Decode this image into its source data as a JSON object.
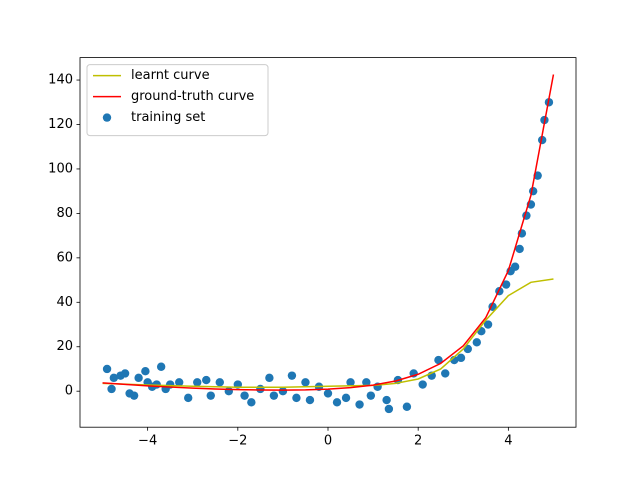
{
  "chart_data": {
    "type": "scatter",
    "xlim": [
      -5.5,
      5.5
    ],
    "ylim": [
      -16.2,
      150.1
    ],
    "xticks": [
      {
        "value": -4,
        "label": "−4"
      },
      {
        "value": -2,
        "label": "−2"
      },
      0,
      2,
      4
    ],
    "yticks": [
      0,
      20,
      40,
      60,
      80,
      100,
      120,
      140
    ],
    "legend": "upper left",
    "series": [
      {
        "name": "learnt curve",
        "type": "line",
        "color": "#bfbf00",
        "x": [
          -5,
          -4,
          -3,
          -2,
          -1,
          0,
          1,
          1.5,
          2,
          2.5,
          3,
          3.5,
          4,
          4.5,
          5
        ],
        "values": [
          3.5,
          2.8,
          2.2,
          1.8,
          1.8,
          2.2,
          2.6,
          3.5,
          5.5,
          10,
          19,
          32,
          43,
          49,
          50.5
        ]
      },
      {
        "name": "ground-truth curve",
        "type": "line",
        "color": "#ff0000",
        "x": [
          -5,
          -4.5,
          -4,
          -3.5,
          -3,
          -2.5,
          -2,
          -1.5,
          -1,
          -0.5,
          0,
          0.5,
          1,
          1.5,
          2,
          2.5,
          3,
          3.5,
          4,
          4.5,
          5
        ],
        "values": [
          3.76,
          3.05,
          2.42,
          1.86,
          1.4,
          0.97,
          0.73,
          0.55,
          0.5,
          0.61,
          0.95,
          1.6,
          2.73,
          4.6,
          7.62,
          12.51,
          20.43,
          33.11,
          54.27,
          88.1,
          142.5
        ]
      },
      {
        "name": "training set",
        "type": "scatter",
        "color": "#1f77b4",
        "x": [
          -4.9,
          -4.8,
          -4.75,
          -4.6,
          -4.5,
          -4.4,
          -4.3,
          -4.2,
          -4.05,
          -4.0,
          -3.9,
          -3.8,
          -3.7,
          -3.6,
          -3.5,
          -3.3,
          -3.1,
          -2.9,
          -2.7,
          -2.6,
          -2.4,
          -2.2,
          -2.0,
          -1.85,
          -1.7,
          -1.5,
          -1.3,
          -1.2,
          -1.0,
          -0.8,
          -0.7,
          -0.5,
          -0.4,
          -0.2,
          0.0,
          0.2,
          0.4,
          0.5,
          0.7,
          0.85,
          0.95,
          1.1,
          1.3,
          1.35,
          1.55,
          1.75,
          1.9,
          2.1,
          2.3,
          2.45,
          2.6,
          2.8,
          2.95,
          3.1,
          3.3,
          3.4,
          3.55,
          3.65,
          3.8,
          3.95,
          4.05,
          4.15,
          4.25,
          4.3,
          4.4,
          4.5,
          4.55,
          4.65,
          4.75,
          4.8,
          4.9
        ],
        "values": [
          10,
          1,
          6,
          7,
          8,
          -1,
          -2,
          6,
          9,
          4,
          2,
          3,
          11,
          1,
          3,
          4,
          -3,
          4,
          5,
          -2,
          4,
          0,
          3,
          -2,
          -5,
          1,
          6,
          -2,
          0,
          7,
          -3,
          4,
          -4,
          2,
          -1,
          -5,
          -3,
          4,
          -6,
          4,
          -2,
          2,
          -4,
          -8,
          5,
          -7,
          8,
          3,
          7,
          14,
          8,
          14,
          15,
          19,
          22,
          27,
          30,
          38,
          45,
          48,
          54,
          56,
          64,
          71,
          79,
          84,
          90,
          97,
          113,
          122,
          130
        ]
      }
    ]
  }
}
